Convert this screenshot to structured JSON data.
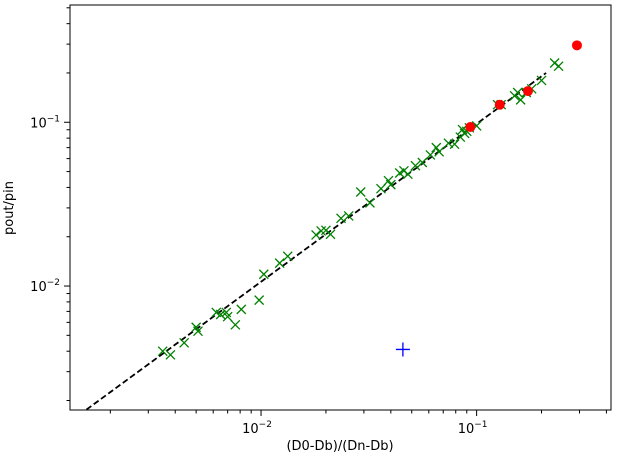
{
  "chart_data": {
    "type": "scatter",
    "xscale": "log",
    "yscale": "log",
    "xlim": [
      0.0013,
      0.42
    ],
    "ylim": [
      0.00175,
      0.52
    ],
    "xlabel": "(D0-Db)/(Dn-Db)",
    "ylabel": "pout/pin",
    "x_ticks": [
      {
        "value": 0.01,
        "base": "10",
        "exp": "−2"
      },
      {
        "value": 0.1,
        "base": "10",
        "exp": "−1"
      }
    ],
    "y_ticks": [
      {
        "value": 0.01,
        "base": "10",
        "exp": "−2"
      },
      {
        "value": 0.1,
        "base": "10",
        "exp": "−1"
      }
    ],
    "fit_line": {
      "style": "dashed",
      "color": "#000000",
      "x": [
        0.00155,
        0.21
      ],
      "y": [
        0.00176,
        0.2
      ]
    },
    "series": [
      {
        "marker": "x",
        "color": "#008000",
        "points": [
          [
            0.0035,
            0.004
          ],
          [
            0.0038,
            0.0038
          ],
          [
            0.0044,
            0.0045
          ],
          [
            0.005,
            0.0056
          ],
          [
            0.0051,
            0.0053
          ],
          [
            0.0062,
            0.0069
          ],
          [
            0.0065,
            0.0067
          ],
          [
            0.0069,
            0.0069
          ],
          [
            0.007,
            0.0065
          ],
          [
            0.0076,
            0.0058
          ],
          [
            0.0081,
            0.0072
          ],
          [
            0.0098,
            0.0082
          ],
          [
            0.0103,
            0.0118
          ],
          [
            0.0122,
            0.0138
          ],
          [
            0.0133,
            0.0152
          ],
          [
            0.018,
            0.0205
          ],
          [
            0.019,
            0.0217
          ],
          [
            0.02,
            0.0219
          ],
          [
            0.021,
            0.0207
          ],
          [
            0.0235,
            0.0259
          ],
          [
            0.0255,
            0.0268
          ],
          [
            0.029,
            0.0375
          ],
          [
            0.032,
            0.0322
          ],
          [
            0.036,
            0.0393
          ],
          [
            0.039,
            0.044
          ],
          [
            0.04,
            0.0416
          ],
          [
            0.044,
            0.049
          ],
          [
            0.046,
            0.0505
          ],
          [
            0.048,
            0.0482
          ],
          [
            0.052,
            0.0543
          ],
          [
            0.056,
            0.0568
          ],
          [
            0.061,
            0.0632
          ],
          [
            0.065,
            0.07
          ],
          [
            0.067,
            0.066
          ],
          [
            0.074,
            0.0745
          ],
          [
            0.079,
            0.0735
          ],
          [
            0.084,
            0.0812
          ],
          [
            0.086,
            0.0902
          ],
          [
            0.088,
            0.0855
          ],
          [
            0.09,
            0.088
          ],
          [
            0.0925,
            0.0925
          ],
          [
            0.1,
            0.095
          ],
          [
            0.125,
            0.128
          ],
          [
            0.13,
            0.128
          ],
          [
            0.15,
            0.145
          ],
          [
            0.155,
            0.152
          ],
          [
            0.16,
            0.137
          ],
          [
            0.17,
            0.152
          ],
          [
            0.18,
            0.16
          ],
          [
            0.2,
            0.18
          ],
          [
            0.23,
            0.23
          ],
          [
            0.24,
            0.22
          ]
        ]
      },
      {
        "marker": "o",
        "color": "#ff0000",
        "points": [
          [
            0.0935,
            0.0935
          ],
          [
            0.128,
            0.128
          ],
          [
            0.173,
            0.155
          ],
          [
            0.292,
            0.295
          ]
        ]
      },
      {
        "marker": "+",
        "color": "#0000ff",
        "points": [
          [
            0.0455,
            0.0041
          ]
        ]
      }
    ]
  }
}
